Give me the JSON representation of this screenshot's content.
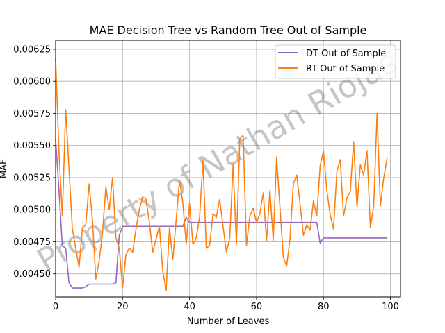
{
  "chart_data": {
    "type": "line",
    "title": "MAE Decision Tree vs Random Tree Out of Sample",
    "xlabel": "Number of Leaves",
    "ylabel": "MAE",
    "xlim": [
      0,
      103
    ],
    "ylim": [
      0.00432,
      0.00632
    ],
    "xticks": [
      0,
      20,
      40,
      60,
      80,
      100
    ],
    "yticks": [
      0.0045,
      0.00475,
      0.005,
      0.00525,
      0.0055,
      0.00575,
      0.006,
      0.00625
    ],
    "ytick_labels": [
      "0.00450",
      "0.00475",
      "0.00500",
      "0.00525",
      "0.00550",
      "0.00575",
      "0.00600",
      "0.00625"
    ],
    "grid": true,
    "legend_position": "top-right",
    "watermark": "Property of Nathan Riojas",
    "series": [
      {
        "name": "DT Out of Sample",
        "color": "#9467bd",
        "x": [
          0,
          1,
          2,
          3,
          4,
          5,
          6,
          7,
          8,
          9,
          10,
          11,
          12,
          13,
          14,
          15,
          16,
          17,
          18,
          19,
          20,
          21,
          22,
          23,
          24,
          25,
          26,
          27,
          28,
          29,
          30,
          31,
          32,
          33,
          34,
          35,
          36,
          37,
          38,
          39,
          40,
          41,
          42,
          43,
          44,
          45,
          46,
          47,
          48,
          49,
          50,
          51,
          52,
          53,
          54,
          55,
          56,
          57,
          58,
          59,
          60,
          61,
          62,
          63,
          64,
          65,
          66,
          67,
          68,
          69,
          70,
          71,
          72,
          73,
          74,
          75,
          76,
          77,
          78,
          79,
          80,
          81,
          82,
          83,
          84,
          85,
          86,
          87,
          88,
          89,
          90,
          91,
          92,
          93,
          94,
          95,
          96,
          97,
          98,
          99
        ],
        "y": [
          0.00555,
          0.00515,
          0.00472,
          0.0047,
          0.00443,
          0.00439,
          0.00439,
          0.00439,
          0.00439,
          0.0044,
          0.00442,
          0.00442,
          0.00442,
          0.00442,
          0.00442,
          0.00442,
          0.00442,
          0.00442,
          0.00443,
          0.0048,
          0.00487,
          0.00487,
          0.00487,
          0.00487,
          0.00487,
          0.00487,
          0.00487,
          0.00487,
          0.00487,
          0.00487,
          0.00487,
          0.00487,
          0.00487,
          0.00487,
          0.00487,
          0.00487,
          0.00487,
          0.00487,
          0.00487,
          0.00494,
          0.0049,
          0.0049,
          0.0049,
          0.0049,
          0.0049,
          0.0049,
          0.0049,
          0.0049,
          0.0049,
          0.0049,
          0.0049,
          0.0049,
          0.0049,
          0.0049,
          0.0049,
          0.0049,
          0.0049,
          0.0049,
          0.0049,
          0.0049,
          0.0049,
          0.0049,
          0.0049,
          0.0049,
          0.0049,
          0.0049,
          0.0049,
          0.0049,
          0.0049,
          0.0049,
          0.0049,
          0.0049,
          0.0049,
          0.0049,
          0.0049,
          0.0049,
          0.0049,
          0.0049,
          0.0049,
          0.00474,
          0.00478,
          0.00478,
          0.00478,
          0.00478,
          0.00478,
          0.00478,
          0.00478,
          0.00478,
          0.00478,
          0.00478,
          0.00478,
          0.00478,
          0.00478,
          0.00478,
          0.00478,
          0.00478,
          0.00478,
          0.00478,
          0.00478,
          0.00478
        ]
      },
      {
        "name": "RT Out of Sample",
        "color": "#ff7f0e",
        "x": [
          0,
          1,
          2,
          3,
          4,
          5,
          6,
          7,
          8,
          9,
          10,
          11,
          12,
          13,
          14,
          15,
          16,
          17,
          18,
          19,
          20,
          21,
          22,
          23,
          24,
          25,
          26,
          27,
          28,
          29,
          30,
          31,
          32,
          33,
          34,
          35,
          36,
          37,
          38,
          39,
          40,
          41,
          42,
          43,
          44,
          45,
          46,
          47,
          48,
          49,
          50,
          51,
          52,
          53,
          54,
          55,
          56,
          57,
          58,
          59,
          60,
          61,
          62,
          63,
          64,
          65,
          66,
          67,
          68,
          69,
          70,
          71,
          72,
          73,
          74,
          75,
          76,
          77,
          78,
          79,
          80,
          81,
          82,
          83,
          84,
          85,
          86,
          87,
          88,
          89,
          90,
          91,
          92,
          93,
          94,
          95,
          96,
          97,
          98,
          99
        ],
        "y": [
          0.00618,
          0.00545,
          0.00495,
          0.00578,
          0.00532,
          0.00485,
          0.0047,
          0.00455,
          0.00486,
          0.00488,
          0.0052,
          0.00492,
          0.00446,
          0.0046,
          0.00482,
          0.00518,
          0.005,
          0.00525,
          0.00478,
          0.0047,
          0.00439,
          0.00465,
          0.0047,
          0.00467,
          0.00485,
          0.005,
          0.0051,
          0.00508,
          0.0049,
          0.00467,
          0.00477,
          0.00487,
          0.00452,
          0.00437,
          0.00486,
          0.00461,
          0.00492,
          0.00523,
          0.00505,
          0.00473,
          0.00505,
          0.00473,
          0.00478,
          0.00494,
          0.00538,
          0.0047,
          0.00472,
          0.00497,
          0.00494,
          0.00508,
          0.00487,
          0.00467,
          0.00478,
          0.00535,
          0.00473,
          0.00555,
          0.00558,
          0.00472,
          0.00495,
          0.00501,
          0.0049,
          0.00497,
          0.00513,
          0.00476,
          0.00515,
          0.00476,
          0.00541,
          0.00502,
          0.00463,
          0.00456,
          0.00477,
          0.0052,
          0.00527,
          0.00505,
          0.0048,
          0.00488,
          0.00484,
          0.00507,
          0.00495,
          0.00534,
          0.00546,
          0.00515,
          0.00496,
          0.00485,
          0.0053,
          0.00539,
          0.00495,
          0.00509,
          0.00514,
          0.00553,
          0.00502,
          0.00535,
          0.00527,
          0.00546,
          0.00486,
          0.00503,
          0.00575,
          0.00503,
          0.00525,
          0.0054
        ]
      }
    ]
  }
}
